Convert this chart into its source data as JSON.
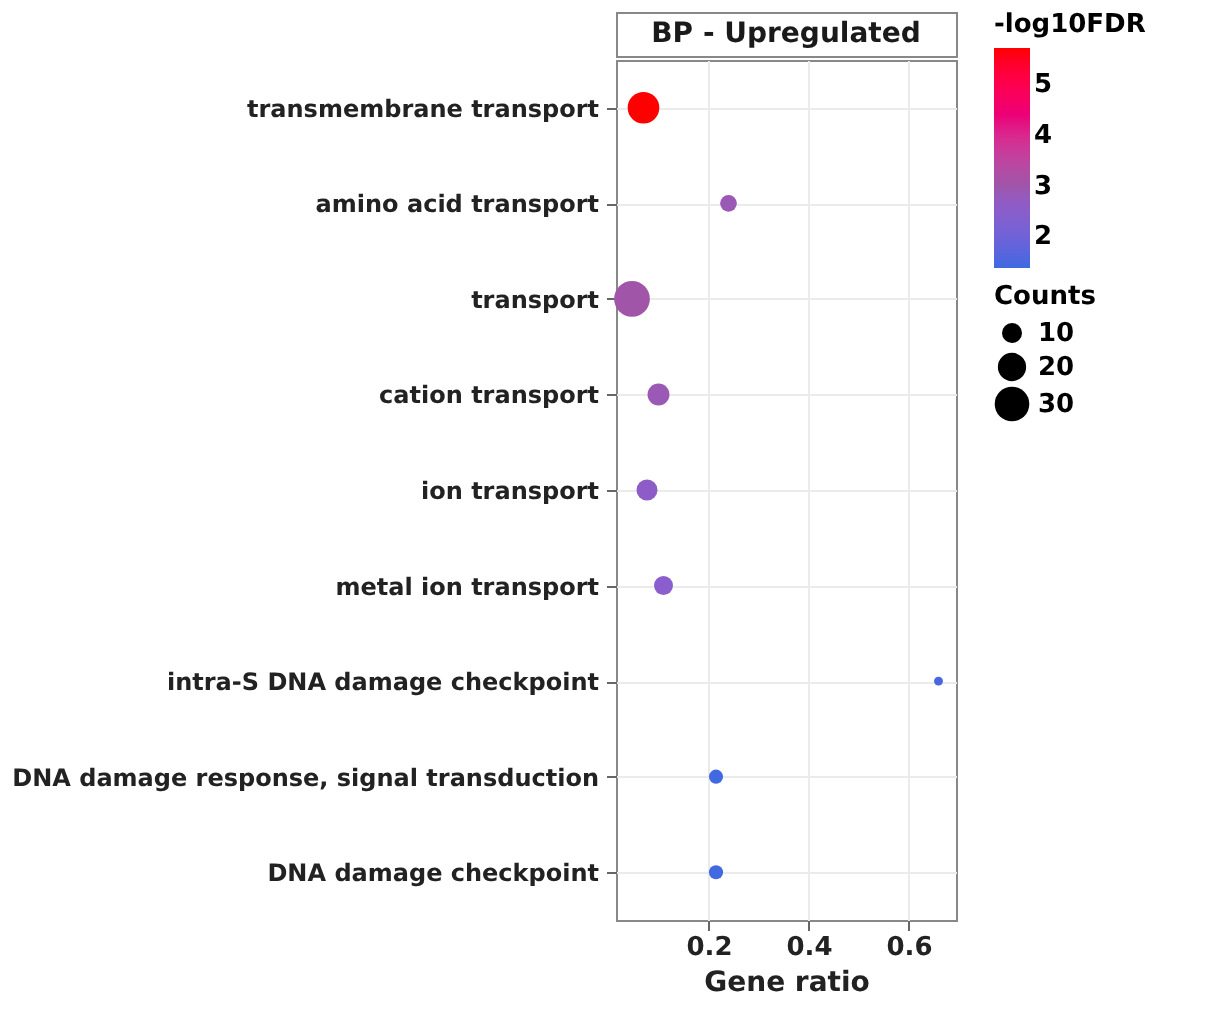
{
  "chart_data": {
    "type": "bubble",
    "title": "BP - Upregulated",
    "xlabel": "Gene ratio",
    "legend_title": "Counts",
    "clabel": "-log10FDR",
    "categories": [
      "transmembrane transport",
      "amino acid transport",
      "transport",
      "cation transport",
      "ion transport",
      "metal ion transport",
      "intra-S DNA damage checkpoint",
      "DNA damage response, signal transduction",
      "DNA damage checkpoint"
    ],
    "values": [
      0.07,
      0.24,
      0.047,
      0.1,
      0.077,
      0.11,
      0.66,
      0.215,
      0.215
    ],
    "sizes": [
      25,
      7,
      32,
      12,
      11,
      9,
      2,
      5,
      5
    ],
    "cvalues": [
      5.7,
      2.9,
      3.0,
      2.9,
      2.6,
      2.5,
      1.5,
      1.4,
      1.4
    ],
    "size_legend": [
      10,
      20,
      30
    ],
    "clim": [
      1.37,
      5.72
    ],
    "cticks": [
      2,
      3,
      4,
      5
    ],
    "colors": [
      "#ff0000",
      "#9b59b6",
      "#a055a8",
      "#9b59b6",
      "#8e5cc6",
      "#8a5ecc",
      "#4a67e0",
      "#4169e1",
      "#4169e1"
    ],
    "orientation": "horizontal",
    "xlim": [
      0.015,
      0.695
    ],
    "xticks": [
      0.2,
      0.4,
      0.6
    ],
    "grid": true
  }
}
